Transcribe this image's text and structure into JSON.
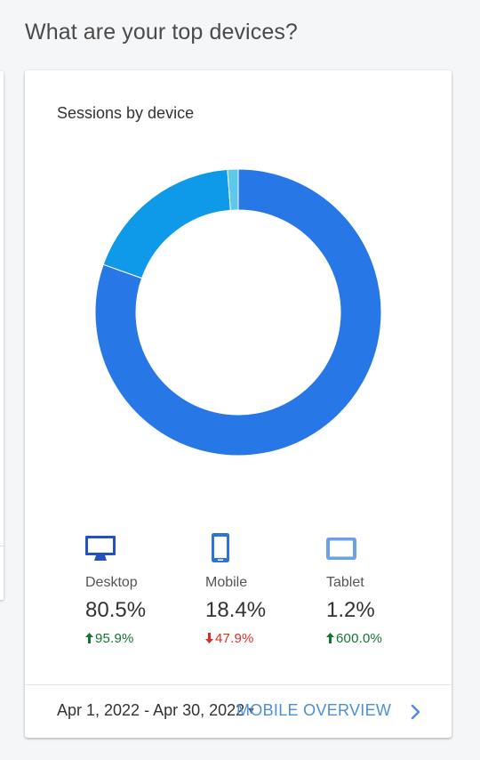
{
  "page": {
    "heading": "What are your top devices?"
  },
  "card": {
    "title": "Sessions by device",
    "footer": {
      "date_range": "Apr 1, 2022 - Apr 30, 2022",
      "link_label": "MOBILE OVERVIEW"
    }
  },
  "chart_data": {
    "type": "pie",
    "title": "Sessions by device",
    "donut": true,
    "slices": [
      {
        "label": "Desktop",
        "value": 80.5,
        "color": "#2778e6"
      },
      {
        "label": "Mobile",
        "value": 18.4,
        "color": "#0f9ae9"
      },
      {
        "label": "Tablet",
        "value": 1.2,
        "color": "#5cc8ec"
      }
    ]
  },
  "devices": [
    {
      "name": "Desktop",
      "icon": "desktop-icon",
      "share": "80.5%",
      "change": "95.9%",
      "direction": "up",
      "icon_color": "#2351bd"
    },
    {
      "name": "Mobile",
      "icon": "mobile-icon",
      "share": "18.4%",
      "change": "47.9%",
      "direction": "down",
      "icon_color": "#2f73d9"
    },
    {
      "name": "Tablet",
      "icon": "tablet-icon",
      "share": "1.2%",
      "change": "600.0%",
      "direction": "up",
      "icon_color": "#6da0e6"
    }
  ]
}
